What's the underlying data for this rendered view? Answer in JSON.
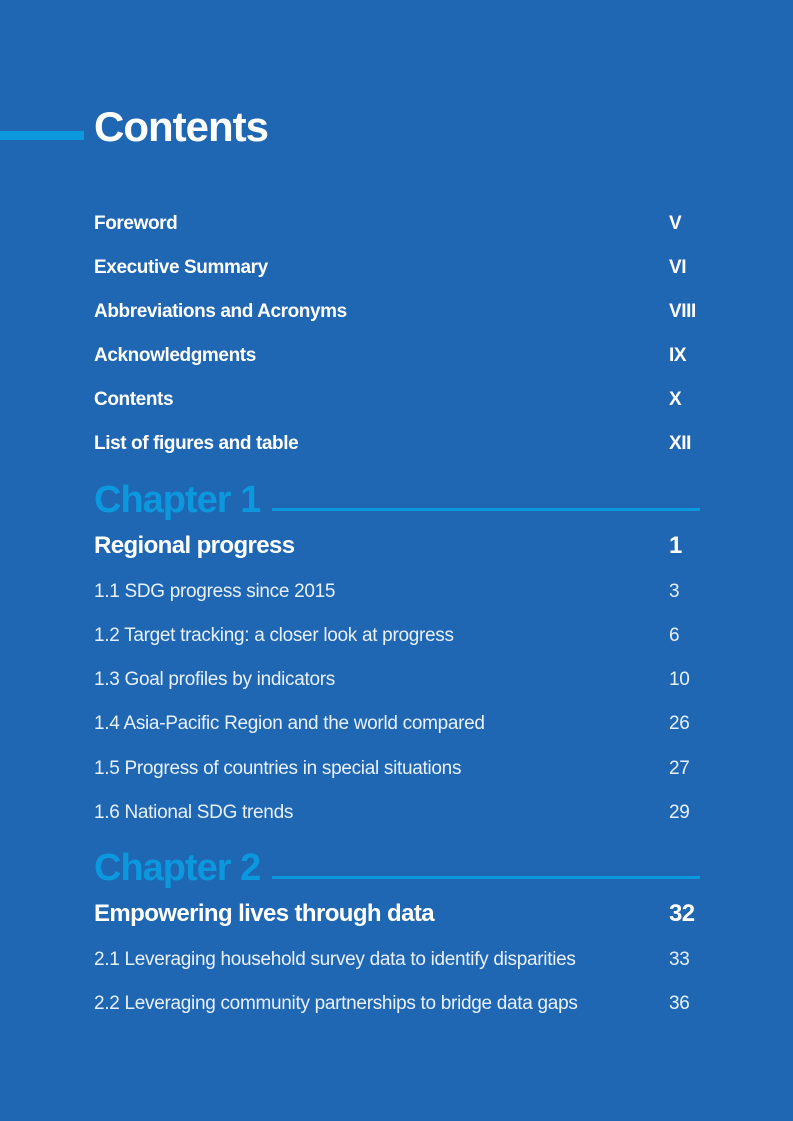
{
  "page_title": "Contents",
  "front_matter": [
    {
      "label": "Foreword",
      "page": "V"
    },
    {
      "label": "Executive Summary",
      "page": "VI"
    },
    {
      "label": "Abbreviations and Acronyms",
      "page": "VIII"
    },
    {
      "label": "Acknowledgments",
      "page": "IX"
    },
    {
      "label": "Contents",
      "page": "X"
    },
    {
      "label": "List of figures and table",
      "page": "XII"
    }
  ],
  "chapters": [
    {
      "label": "Chapter 1",
      "title": "Regional progress",
      "page": "1",
      "sections": [
        {
          "label": "1.1 SDG progress since 2015",
          "page": "3"
        },
        {
          "label": "1.2 Target tracking: a closer look at progress",
          "page": "6"
        },
        {
          "label": "1.3 Goal profiles by indicators",
          "page": "10"
        },
        {
          "label": "1.4 Asia-Pacific Region and the world compared",
          "page": "26"
        },
        {
          "label": "1.5 Progress of countries in special situations",
          "page": "27"
        },
        {
          "label": "1.6 National SDG trends",
          "page": "29"
        }
      ]
    },
    {
      "label": "Chapter 2",
      "title": "Empowering lives through data",
      "page": "32",
      "sections": [
        {
          "label": "2.1 Leveraging household survey data to identify disparities",
          "page": "33"
        },
        {
          "label": "2.2 Leveraging community partnerships to bridge data gaps",
          "page": "36"
        }
      ]
    }
  ],
  "colors": {
    "background": "#1f66b3",
    "accent": "#0b98dd",
    "text": "#ffffff"
  }
}
